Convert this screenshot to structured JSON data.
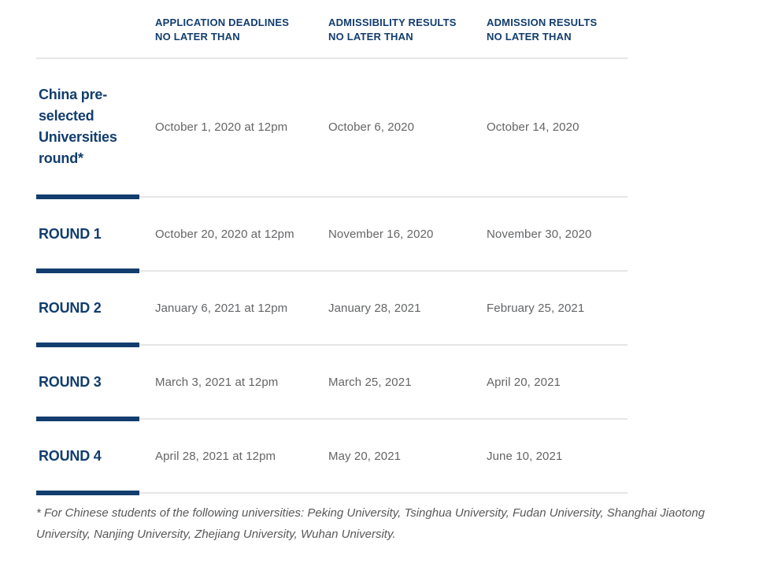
{
  "colors": {
    "navy": "#123d6e",
    "date_gray": "#646567",
    "footnote_gray": "#58595b",
    "divider_gray": "#e6e6e6"
  },
  "table": {
    "headers": [
      {
        "line1": "APPLICATION DEADLINES",
        "line2": "NO LATER THAN"
      },
      {
        "line1": "ADMISSIBILITY RESULTS",
        "line2": "NO LATER THAN"
      },
      {
        "line1": "ADMISSION RESULTS",
        "line2": "NO LATER THAN"
      }
    ],
    "rows": [
      {
        "label": "China pre-selected Universities round*",
        "cells": [
          "October 1, 2020 at 12pm",
          "October 6, 2020",
          "October 14, 2020"
        ]
      },
      {
        "label": "ROUND 1",
        "cells": [
          "October 20, 2020 at 12pm",
          "November 16, 2020",
          "November 30, 2020"
        ]
      },
      {
        "label": "ROUND 2",
        "cells": [
          "January 6, 2021 at 12pm",
          "January 28, 2021",
          "February 25, 2021"
        ]
      },
      {
        "label": "ROUND 3",
        "cells": [
          "March 3, 2021 at 12pm",
          "March 25, 2021",
          "April 20, 2021"
        ]
      },
      {
        "label": "ROUND 4",
        "cells": [
          "April 28, 2021 at 12pm",
          "May 20, 2021",
          "June 10, 2021"
        ]
      }
    ]
  },
  "footnote": "* For Chinese students of the following universities: Peking University, Tsinghua University, Fudan University, Shanghai Jiaotong University, Nanjing University, Zhejiang University, Wuhan University."
}
